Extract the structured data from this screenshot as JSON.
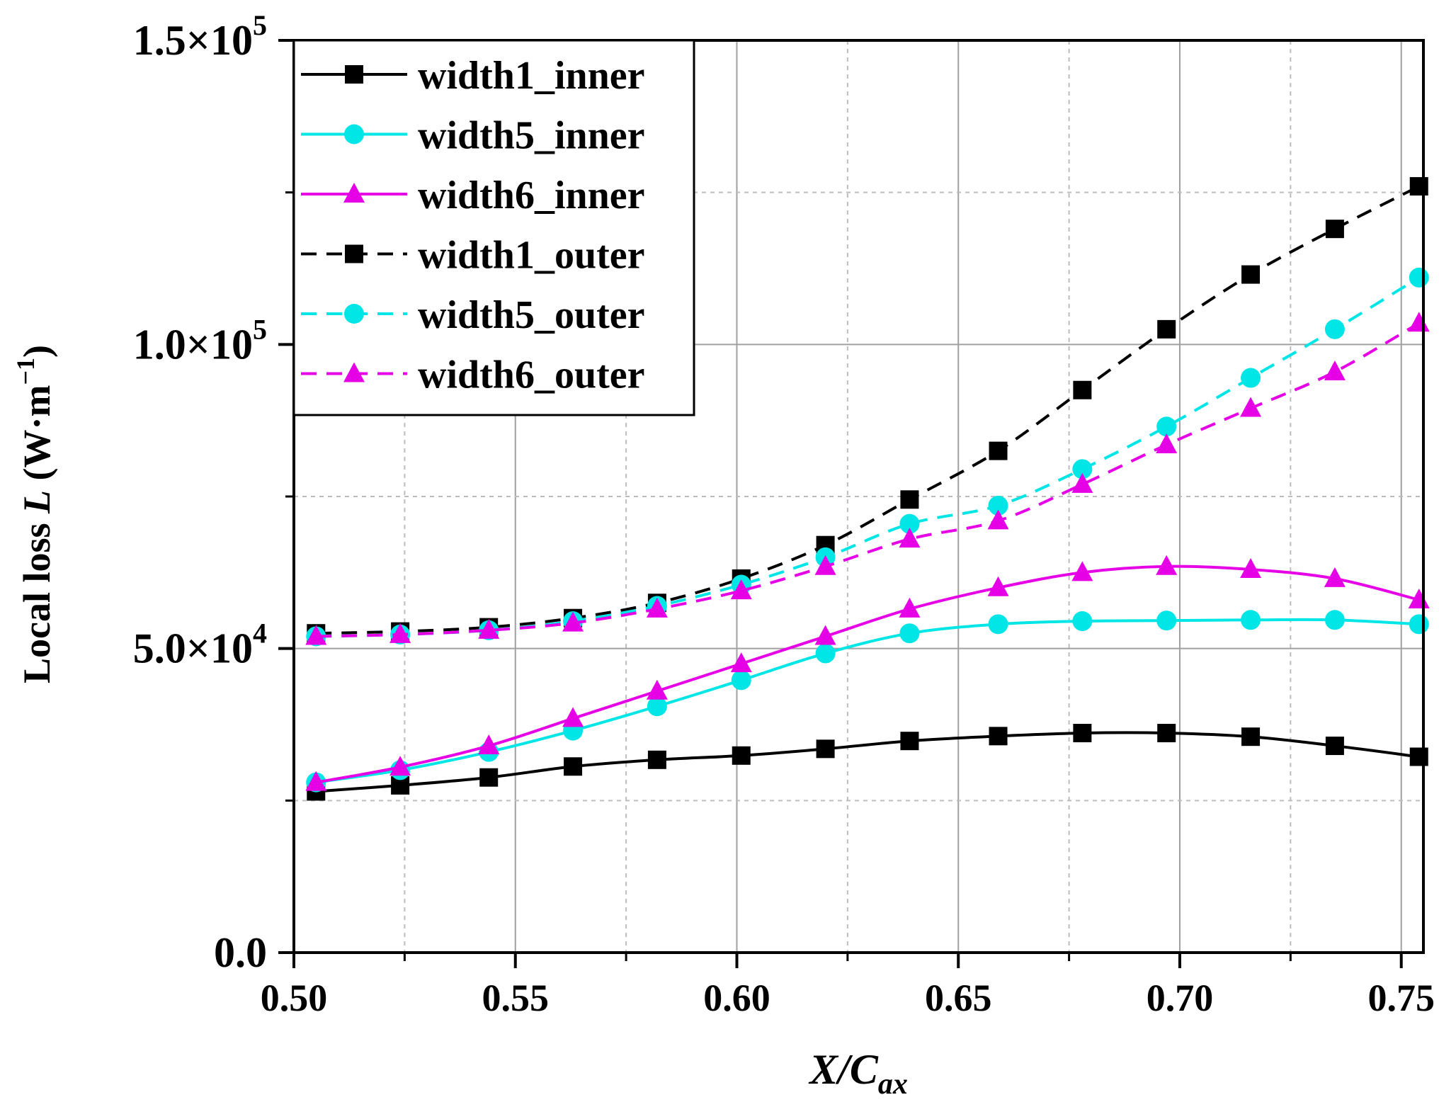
{
  "chart_data": {
    "type": "line",
    "xlabel": "X/C",
    "xlabel_sub": "ax",
    "ylabel": "Local loss",
    "ylabel_var": "L",
    "ylabel_unit": "(W·m",
    "ylabel_unit_exp": "−1",
    "ylabel_unit_close": ")",
    "xlim": [
      0.5,
      0.755
    ],
    "ylim": [
      0,
      150000
    ],
    "grid": true,
    "legend_position": "top-left",
    "x_ticks": [
      {
        "value": 0.5,
        "label": "0.50"
      },
      {
        "value": 0.55,
        "label": "0.55"
      },
      {
        "value": 0.6,
        "label": "0.60"
      },
      {
        "value": 0.65,
        "label": "0.65"
      },
      {
        "value": 0.7,
        "label": "0.70"
      },
      {
        "value": 0.75,
        "label": "0.75"
      }
    ],
    "y_ticks": [
      {
        "value": 0,
        "label": "0.0",
        "exp": ""
      },
      {
        "value": 50000,
        "label": "5.0×10",
        "exp": "4"
      },
      {
        "value": 100000,
        "label": "1.0×10",
        "exp": "5"
      },
      {
        "value": 150000,
        "label": "1.5×10",
        "exp": "5"
      }
    ],
    "x": [
      0.505,
      0.524,
      0.544,
      0.563,
      0.582,
      0.601,
      0.62,
      0.639,
      0.659,
      0.678,
      0.697,
      0.716,
      0.735,
      0.754
    ],
    "series": [
      {
        "name": "width1_inner",
        "color": "#000000",
        "marker": "square",
        "dash": false,
        "values": [
          26500,
          27500,
          28800,
          30600,
          31700,
          32400,
          33500,
          34800,
          35600,
          36100,
          36100,
          35500,
          34000,
          32200
        ]
      },
      {
        "name": "width5_inner",
        "color": "#00e5e5",
        "marker": "circle",
        "dash": false,
        "values": [
          28000,
          30000,
          33000,
          36500,
          40500,
          44800,
          49200,
          52500,
          54000,
          54500,
          54600,
          54700,
          54700,
          54000
        ]
      },
      {
        "name": "width6_inner",
        "color": "#e600e6",
        "marker": "triangle",
        "dash": false,
        "values": [
          28000,
          30500,
          34000,
          38500,
          43000,
          47500,
          52000,
          56500,
          60000,
          62500,
          63500,
          63000,
          61500,
          58000
        ]
      },
      {
        "name": "width1_outer",
        "color": "#000000",
        "marker": "square",
        "dash": true,
        "values": [
          52500,
          52800,
          53500,
          55000,
          57500,
          61500,
          67000,
          74500,
          82500,
          92500,
          102500,
          111500,
          119000,
          126000
        ]
      },
      {
        "name": "width5_outer",
        "color": "#00e5e5",
        "marker": "circle",
        "dash": true,
        "values": [
          52000,
          52300,
          53000,
          54500,
          57000,
          60500,
          65000,
          70500,
          73500,
          79500,
          86500,
          94500,
          102500,
          111000
        ]
      },
      {
        "name": "width6_outer",
        "color": "#e600e6",
        "marker": "triangle",
        "dash": true,
        "values": [
          52000,
          52300,
          53000,
          54200,
          56500,
          59500,
          63500,
          68000,
          71000,
          77000,
          83500,
          89500,
          95500,
          103500
        ]
      }
    ]
  }
}
